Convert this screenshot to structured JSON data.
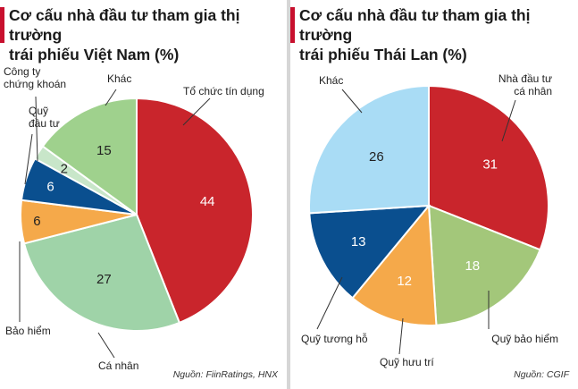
{
  "charts": [
    {
      "title_line1": "Cơ cấu nhà đầu tư tham gia thị trường",
      "title_line2": "trái phiếu Việt Nam (%)",
      "source": "Nguồn: FiinRatings, HNX"
    },
    {
      "title_line1": "Cơ cấu nhà đầu tư tham gia thị trường",
      "title_line2": "trái phiếu Thái Lan (%)",
      "source": "Nguồn: CGIF"
    }
  ],
  "colors": {
    "accent": "#c8102e",
    "red": "#c9252c",
    "light_green": "#9fd18d",
    "mint": "#c8e6c9",
    "navy": "#0a4f8f",
    "orange": "#f5a94a",
    "pale_green": "#9fd3a8",
    "light_blue": "#a9dcf5",
    "olive_green": "#a3c77a"
  },
  "chart_data": [
    {
      "type": "pie",
      "title": "Cơ cấu nhà đầu tư tham gia thị trường trái phiếu Việt Nam (%)",
      "slices": [
        {
          "label": "Tổ chức tín dụng",
          "value": 44,
          "color": "#c9252c"
        },
        {
          "label": "Cá nhân",
          "value": 27,
          "color": "#9fd3a8"
        },
        {
          "label": "Bảo hiểm",
          "value": 6,
          "color": "#f5a94a"
        },
        {
          "label": "Quỹ đầu tư",
          "value": 6,
          "color": "#0a4f8f"
        },
        {
          "label": "Công ty chứng khoán",
          "value": 2,
          "color": "#c8e6c9"
        },
        {
          "label": "Khác",
          "value": 15,
          "color": "#9fd18d"
        }
      ],
      "source": "Nguồn: FiinRatings, HNX"
    },
    {
      "type": "pie",
      "title": "Cơ cấu nhà đầu tư tham gia thị trường trái phiếu Thái Lan (%)",
      "slices": [
        {
          "label": "Nhà đầu tư cá nhân",
          "value": 31,
          "color": "#c9252c"
        },
        {
          "label": "Quỹ bảo hiểm",
          "value": 18,
          "color": "#a3c77a"
        },
        {
          "label": "Quỹ hưu trí",
          "value": 12,
          "color": "#f5a94a"
        },
        {
          "label": "Quỹ tương hỗ",
          "value": 13,
          "color": "#0a4f8f"
        },
        {
          "label": "Khác",
          "value": 26,
          "color": "#a9dcf5"
        }
      ],
      "source": "Nguồn: CGIF"
    }
  ]
}
